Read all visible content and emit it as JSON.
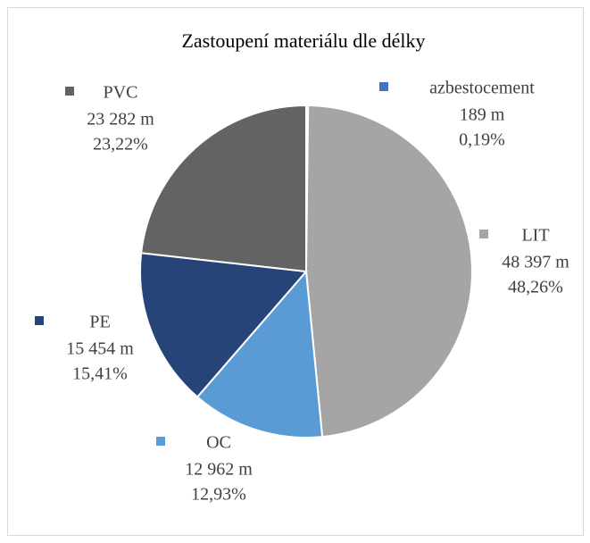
{
  "chart_data": {
    "type": "pie",
    "title": "Zastoupení materiálu dle délky",
    "categories": [
      "azbestocement",
      "LIT",
      "OC",
      "PE",
      "PVC"
    ],
    "values": [
      189,
      48397,
      12962,
      15454,
      23282
    ],
    "value_labels": [
      "189 m",
      "48 397 m",
      "12 962 m",
      "15 454 m",
      "23 282 m"
    ],
    "percent_labels": [
      "0,19%",
      "48,26%",
      "12,93%",
      "15,41%",
      "23,22%"
    ],
    "colors": [
      "#4472c4",
      "#a5a5a5",
      "#5b9bd5",
      "#264478",
      "#636363"
    ]
  }
}
